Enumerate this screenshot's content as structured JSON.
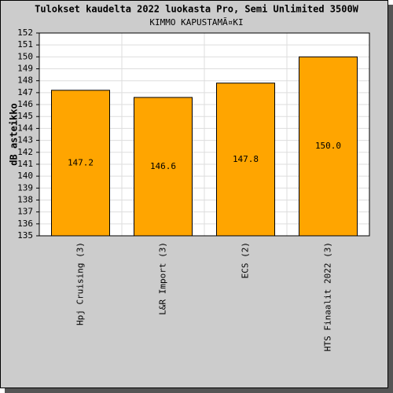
{
  "chart_data": {
    "type": "bar",
    "title": "Tulokset kaudelta 2022 luokasta Pro, Semi Unlimited 3500W",
    "subtitle": "KIMMO KAPUSTAMÃ¤KI",
    "y_label": "dB asteikko",
    "categories": [
      "Hpj Cruising (3)",
      "L&R Import (3)",
      "ECS (2)",
      "HTS Finaalit 2022 (3)"
    ],
    "values": [
      147.2,
      146.6,
      147.8,
      150.0
    ],
    "value_labels": [
      "147.2",
      "146.6",
      "147.8",
      "150.0"
    ],
    "color": "#ffa500",
    "ylim": [
      135,
      152
    ],
    "yticks": [
      135,
      136,
      137,
      138,
      139,
      140,
      141,
      142,
      143,
      144,
      145,
      146,
      147,
      148,
      149,
      150,
      151,
      152
    ],
    "grid": true
  }
}
